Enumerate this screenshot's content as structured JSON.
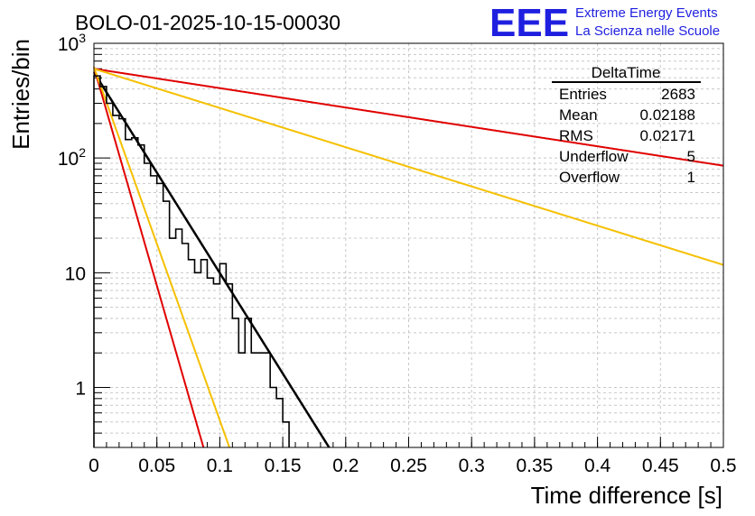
{
  "title": "BOLO-01-2025-10-15-00030",
  "logo": {
    "mark": "EEE",
    "line1": "Extreme Energy Events",
    "line2": "La Scienza nelle Scuole",
    "color": "#1f1fe0"
  },
  "stats": {
    "name": "DeltaTime",
    "rows": [
      {
        "label": "Entries",
        "value": "2683"
      },
      {
        "label": "Mean",
        "value": "0.02188"
      },
      {
        "label": "RMS",
        "value": "0.02171"
      },
      {
        "label": "Underflow",
        "value": "5"
      },
      {
        "label": "Overflow",
        "value": "1"
      }
    ]
  },
  "chart_data": {
    "type": "histogram",
    "title": "BOLO-01-2025-10-15-00030",
    "xlabel": "Time difference [s]",
    "ylabel": "Entries/bin",
    "xlim": [
      0,
      0.5
    ],
    "ylim": [
      0.3,
      1000
    ],
    "yscale": "log",
    "grid": true,
    "x_ticks": [
      0,
      0.05,
      0.1,
      0.15,
      0.2,
      0.25,
      0.3,
      0.35,
      0.4,
      0.45,
      0.5
    ],
    "x_tick_labels": [
      "0",
      "0.05",
      "0.1",
      "0.15",
      "0.2",
      "0.25",
      "0.3",
      "0.35",
      "0.4",
      "0.45",
      "0.5"
    ],
    "y_ticks": [
      1,
      10,
      100,
      1000
    ],
    "y_tick_labels": [
      "1",
      "10",
      "10²",
      "10³"
    ],
    "histogram": {
      "bin_width": 0.005,
      "bin_starts": [
        0.0,
        0.005,
        0.01,
        0.015,
        0.02,
        0.025,
        0.03,
        0.035,
        0.04,
        0.045,
        0.05,
        0.055,
        0.06,
        0.065,
        0.07,
        0.075,
        0.08,
        0.085,
        0.09,
        0.095,
        0.1,
        0.105,
        0.11,
        0.115,
        0.12,
        0.125,
        0.13,
        0.135,
        0.14,
        0.145,
        0.15
      ],
      "counts": [
        520,
        420,
        300,
        235,
        220,
        145,
        150,
        130,
        90,
        70,
        60,
        42,
        20,
        24,
        18,
        13,
        10,
        13,
        9,
        8,
        12,
        8,
        4,
        2,
        4,
        2,
        2,
        2,
        1,
        0.8,
        0.5
      ],
      "color": "#000000"
    },
    "curves": [
      {
        "name": "fit",
        "color": "#000000",
        "A": 560,
        "tau": 0.0248,
        "width": 2.5
      },
      {
        "name": "lower-red",
        "color": "#e00000",
        "A": 620,
        "tau": 0.0114,
        "width": 2
      },
      {
        "name": "lower-yellow",
        "color": "#f5c000",
        "A": 620,
        "tau": 0.0141,
        "width": 2
      },
      {
        "name": "upper-red",
        "color": "#e00000",
        "A": 600,
        "tau": 0.257,
        "width": 2
      },
      {
        "name": "upper-yellow",
        "color": "#f5c000",
        "A": 600,
        "tau": 0.127,
        "width": 2
      }
    ]
  }
}
